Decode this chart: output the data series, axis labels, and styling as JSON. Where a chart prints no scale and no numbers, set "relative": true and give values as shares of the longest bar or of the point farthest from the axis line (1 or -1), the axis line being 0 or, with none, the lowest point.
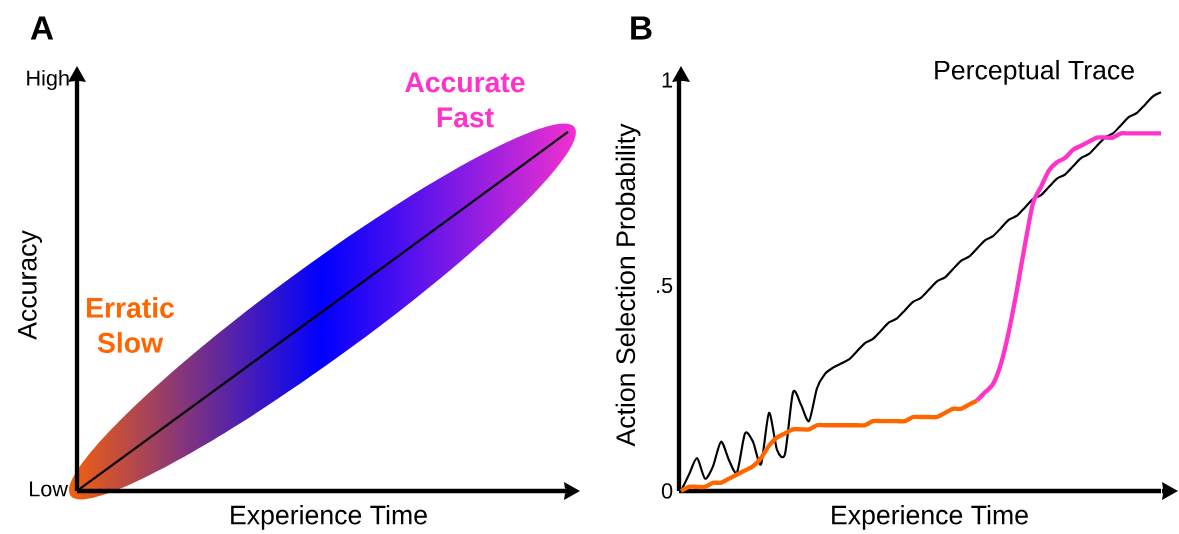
{
  "chart_data": [
    {
      "type": "line",
      "title": "A",
      "xlabel": "Experience Time",
      "ylabel": "Accuracy",
      "categories": [
        null,
        null
      ],
      "values": [
        0,
        1
      ],
      "color": "#000000",
      "relative": true,
      "annotations": [
        "Low",
        "High",
        "Erratic Slow",
        "Accurate Fast"
      ]
    },
    {
      "type": "line",
      "title": "B",
      "xlabel": "Experience Time",
      "ylabel": "Action Selection Probability",
      "categories": [
        null,
        null,
        null,
        null,
        null,
        null,
        null,
        null,
        null,
        null,
        null,
        null,
        null,
        null,
        null,
        null,
        null,
        null,
        null,
        null,
        null,
        null,
        null,
        null,
        null,
        null,
        null,
        null,
        null,
        null,
        null,
        null,
        null,
        null,
        null,
        null,
        null,
        null,
        null,
        null,
        null,
        null,
        null,
        null,
        null,
        null,
        null,
        null,
        null,
        null,
        null,
        null,
        null,
        null,
        null,
        null,
        null,
        null,
        null,
        null,
        null
      ],
      "ylim": [
        0,
        1
      ],
      "yticks": [
        0,
        {
          "value": 0.5,
          "label": ".5"
        },
        1
      ],
      "series": [
        {
          "name": "Perceptual Trace",
          "color": "#000000",
          "values": [
            0,
            0.04,
            0.08,
            0.03,
            0.06,
            0.12,
            0.075,
            0.045,
            0.14,
            0.12,
            0.065,
            0.19,
            0.1,
            0.09,
            0.24,
            0.21,
            0.17,
            0.25,
            0.285,
            0.3,
            0.31,
            0.32,
            0.34,
            0.36,
            0.37,
            0.39,
            0.41,
            0.42,
            0.44,
            0.46,
            0.47,
            0.49,
            0.51,
            0.52,
            0.54,
            0.56,
            0.57,
            0.59,
            0.61,
            0.62,
            0.64,
            0.66,
            0.67,
            0.69,
            0.71,
            0.72,
            0.74,
            0.76,
            0.77,
            0.79,
            0.81,
            0.82,
            0.84,
            0.86,
            0.87,
            0.89,
            0.91,
            0.92,
            0.94,
            0.96,
            0.97
          ]
        },
        {
          "color": "#ff6600",
          "values": [
            0,
            0.01,
            0.01,
            0.01,
            0.02,
            0.02,
            0.03,
            0.04,
            0.05,
            0.06,
            0.08,
            0.11,
            0.13,
            0.14,
            0.15,
            0.15,
            0.15,
            0.16,
            0.16,
            0.16,
            0.16,
            0.16,
            0.16,
            0.16,
            0.17,
            0.17,
            0.17,
            0.17,
            0.17,
            0.18,
            0.18,
            0.18,
            0.18,
            0.19,
            0.2,
            0.2,
            0.21,
            0.22,
            null,
            null,
            null,
            null,
            null,
            null,
            null,
            null,
            null,
            null,
            null,
            null,
            null,
            null,
            null,
            null,
            null,
            null,
            null,
            null,
            null,
            null,
            null
          ]
        },
        {
          "color": "#ff33cc",
          "values": [
            null,
            null,
            null,
            null,
            null,
            null,
            null,
            null,
            null,
            null,
            null,
            null,
            null,
            null,
            null,
            null,
            null,
            null,
            null,
            null,
            null,
            null,
            null,
            null,
            null,
            null,
            null,
            null,
            null,
            null,
            null,
            null,
            null,
            null,
            null,
            null,
            null,
            0.22,
            0.24,
            0.26,
            0.31,
            0.39,
            0.49,
            0.6,
            0.7,
            0.74,
            0.78,
            0.8,
            0.81,
            0.83,
            0.84,
            0.85,
            0.86,
            0.86,
            0.86,
            0.87,
            0.87,
            0.87,
            0.87,
            0.87,
            0.87
          ]
        }
      ]
    }
  ]
}
